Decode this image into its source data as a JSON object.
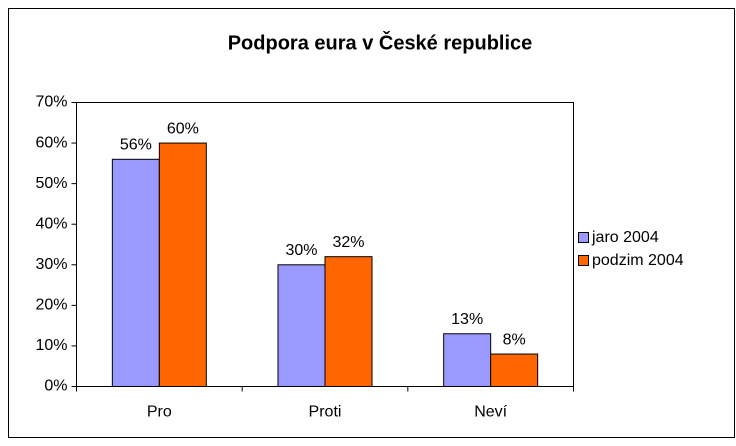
{
  "chart_data": {
    "type": "bar",
    "title": "Podpora eura v České republice",
    "categories": [
      "Pro",
      "Proti",
      "Neví"
    ],
    "series": [
      {
        "name": "jaro 2004",
        "color": "#9999ff",
        "values": [
          56,
          30,
          13
        ],
        "value_labels": [
          "56%",
          "30%",
          "13%"
        ]
      },
      {
        "name": "podzim 2004",
        "color": "#ff6600",
        "values": [
          60,
          32,
          8
        ],
        "value_labels": [
          "60%",
          "32%",
          "8%"
        ]
      }
    ],
    "ylim": [
      0,
      70
    ],
    "yticks": [
      {
        "value": 0,
        "label": "0%"
      },
      {
        "value": 10,
        "label": "10%"
      },
      {
        "value": 20,
        "label": "20%"
      },
      {
        "value": 30,
        "label": "30%"
      },
      {
        "value": 40,
        "label": "40%"
      },
      {
        "value": 50,
        "label": "50%"
      },
      {
        "value": 60,
        "label": "60%"
      },
      {
        "value": 70,
        "label": "70%"
      }
    ],
    "legend": "right"
  }
}
